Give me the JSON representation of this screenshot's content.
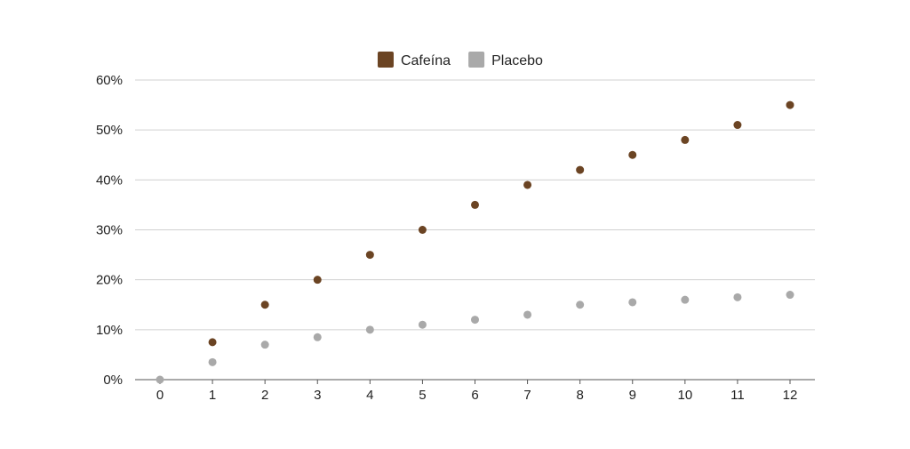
{
  "chart_data": {
    "type": "scatter",
    "title": "",
    "xlabel": "",
    "ylabel": "",
    "x": [
      0,
      1,
      2,
      3,
      4,
      5,
      6,
      7,
      8,
      9,
      10,
      11,
      12
    ],
    "x_ticks": [
      "0",
      "1",
      "2",
      "3",
      "4",
      "5",
      "6",
      "7",
      "8",
      "9",
      "10",
      "11",
      "12"
    ],
    "y_ticks": [
      "0%",
      "10%",
      "20%",
      "30%",
      "40%",
      "50%",
      "60%"
    ],
    "xlim": [
      0,
      12
    ],
    "ylim": [
      0,
      60
    ],
    "y_unit": "%",
    "grid": "horizontal",
    "legend_position": "top-center",
    "series": [
      {
        "name": "Cafeína",
        "color": "#6b4423",
        "points": [
          [
            1,
            7.5
          ],
          [
            2,
            15
          ],
          [
            3,
            20
          ],
          [
            4,
            25
          ],
          [
            5,
            30
          ],
          [
            6,
            35
          ],
          [
            7,
            39
          ],
          [
            8,
            42
          ],
          [
            9,
            45
          ],
          [
            10,
            48
          ],
          [
            11,
            51
          ],
          [
            12,
            55
          ]
        ]
      },
      {
        "name": "Placebo",
        "color": "#a9a9a9",
        "points": [
          [
            0,
            0
          ],
          [
            1,
            3.5
          ],
          [
            2,
            7
          ],
          [
            3,
            8.5
          ],
          [
            4,
            10
          ],
          [
            5,
            11
          ],
          [
            6,
            12
          ],
          [
            7,
            13
          ],
          [
            8,
            15
          ],
          [
            9,
            15.5
          ],
          [
            10,
            16
          ],
          [
            11,
            16.5
          ],
          [
            12,
            17
          ]
        ]
      }
    ]
  }
}
